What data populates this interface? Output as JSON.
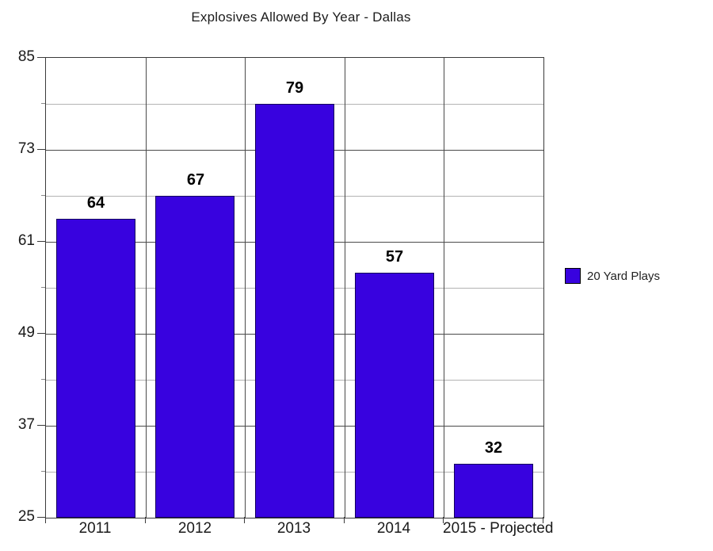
{
  "chart_data": {
    "type": "bar",
    "title": "Explosives Allowed By Year - Dallas",
    "categories": [
      "2011",
      "2012",
      "2013",
      "2014",
      "2015 - Projected"
    ],
    "series": [
      {
        "name": "20 Yard Plays",
        "values": [
          64,
          67,
          79,
          57,
          32
        ]
      }
    ],
    "data_labels": [
      "64",
      "67",
      "79",
      "57",
      "32"
    ],
    "ylim": [
      25,
      85
    ],
    "yticks": [
      25,
      37,
      49,
      61,
      73,
      85
    ],
    "minor_step": 6,
    "grid": "on",
    "legend_position": "right",
    "colors": {
      "bar_fill": "#3802DF",
      "bar_border": "#14005c",
      "major_grid": "#4a4a4a",
      "minor_grid": "#b3b3b3",
      "axis": "#3a3a3a",
      "text": "#1a1a1a",
      "background": "#ffffff"
    },
    "xlabel": "",
    "ylabel": ""
  }
}
